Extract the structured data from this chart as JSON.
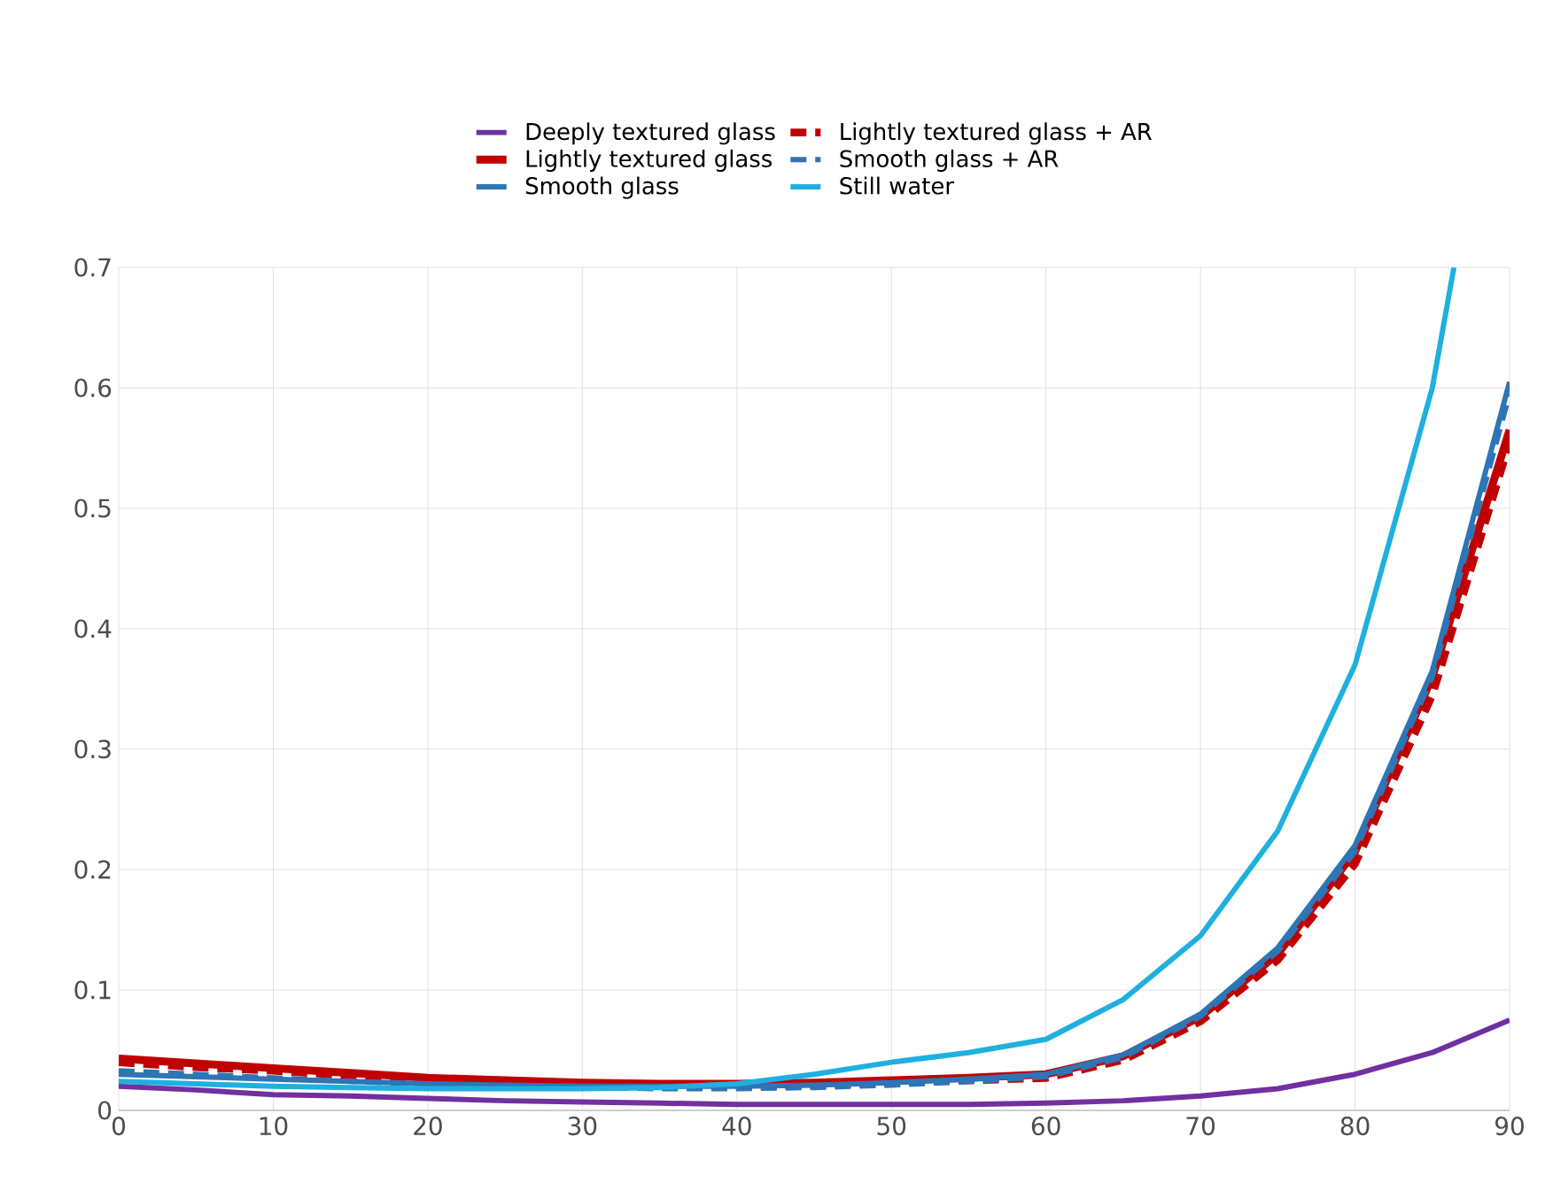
{
  "chart_data": {
    "type": "line",
    "x": [
      0,
      5,
      10,
      15,
      20,
      25,
      30,
      35,
      40,
      45,
      50,
      55,
      60,
      65,
      70,
      75,
      80,
      85,
      90
    ],
    "series": [
      {
        "name": "Deeply textured glass",
        "color": "#7030a0",
        "line_style": "solid",
        "values": [
          0.02,
          0.017,
          0.013,
          0.012,
          0.01,
          0.008,
          0.007,
          0.006,
          0.005,
          0.005,
          0.005,
          0.005,
          0.006,
          0.008,
          0.012,
          0.018,
          0.03,
          0.048,
          0.075
        ]
      },
      {
        "name": "Lightly textured glass + AR",
        "color": "#c00000",
        "line_style": "dashed",
        "values": [
          0.04,
          0.036,
          0.033,
          0.029,
          0.026,
          0.023,
          0.021,
          0.02,
          0.02,
          0.021,
          0.023,
          0.025,
          0.027,
          0.042,
          0.074,
          0.125,
          0.205,
          0.345,
          0.555
        ]
      },
      {
        "name": "Lightly textured glass",
        "color": "#c00000",
        "line_style": "solid",
        "values": [
          0.043,
          0.039,
          0.035,
          0.031,
          0.027,
          0.025,
          0.023,
          0.022,
          0.022,
          0.023,
          0.025,
          0.027,
          0.03,
          0.045,
          0.078,
          0.13,
          0.215,
          0.36,
          0.565
        ]
      },
      {
        "name": "Smooth glass + AR",
        "color": "#2e75b6",
        "line_style": "dashed",
        "values": [
          0.033,
          0.03,
          0.027,
          0.024,
          0.022,
          0.02,
          0.019,
          0.018,
          0.018,
          0.019,
          0.021,
          0.024,
          0.028,
          0.044,
          0.078,
          0.132,
          0.215,
          0.36,
          0.595
        ]
      },
      {
        "name": "Smooth glass",
        "color": "#2e75b6",
        "line_style": "solid",
        "values": [
          0.03,
          0.028,
          0.026,
          0.024,
          0.022,
          0.021,
          0.02,
          0.02,
          0.02,
          0.021,
          0.023,
          0.026,
          0.03,
          0.046,
          0.08,
          0.135,
          0.22,
          0.365,
          0.605
        ]
      },
      {
        "name": "Still water",
        "color": "#1fb0e0",
        "line_style": "solid",
        "x": [
          0,
          5,
          10,
          15,
          20,
          25,
          30,
          35,
          40,
          45,
          50,
          55,
          60,
          65,
          70,
          75,
          80,
          85,
          86.4
        ],
        "values": [
          0.024,
          0.022,
          0.02,
          0.019,
          0.018,
          0.018,
          0.018,
          0.019,
          0.022,
          0.03,
          0.04,
          0.048,
          0.059,
          0.092,
          0.145,
          0.232,
          0.37,
          0.6,
          0.7
        ]
      }
    ],
    "xlim": [
      0,
      90
    ],
    "xticks": [
      0,
      10,
      20,
      30,
      40,
      50,
      60,
      70,
      80,
      90
    ],
    "ylim": [
      0,
      0.7
    ],
    "yticks": [
      0,
      0.1,
      0.2,
      0.3,
      0.4,
      0.5,
      0.6,
      0.7
    ],
    "grid": true,
    "legend": "top",
    "marker": "none"
  }
}
